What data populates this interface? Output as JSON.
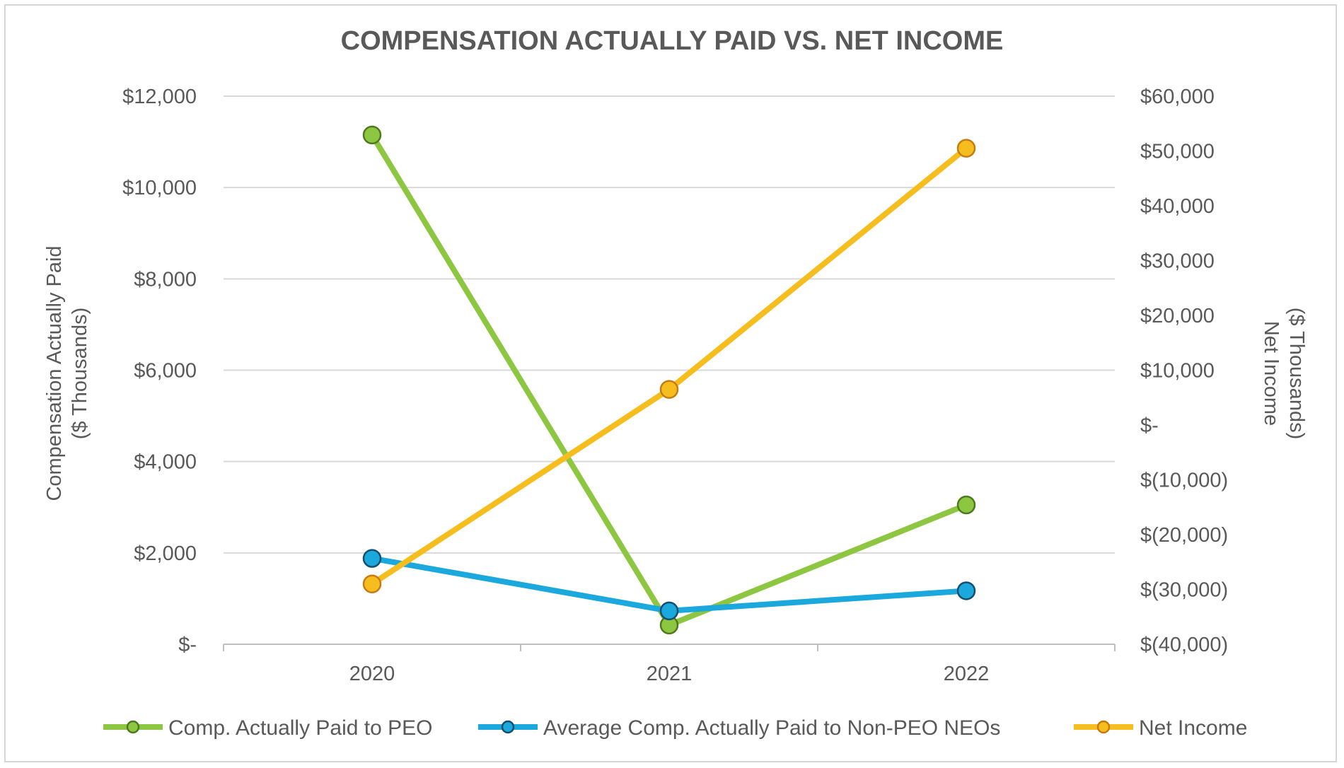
{
  "chart_data": {
    "type": "line",
    "title": "COMPENSATION ACTUALLY PAID VS. NET INCOME",
    "categories": [
      "2020",
      "2021",
      "2022"
    ],
    "y_left": {
      "label_line1": "Compensation Actually Paid",
      "label_line2": "($ Thousands)",
      "range": [
        0,
        12000
      ],
      "ticks": [
        0,
        2000,
        4000,
        6000,
        8000,
        10000,
        12000
      ],
      "tick_labels": [
        "$-",
        "$2,000",
        "$4,000",
        "$6,000",
        "$8,000",
        "$10,000",
        "$12,000"
      ]
    },
    "y_right": {
      "label_line1": "Net Income",
      "label_line2": "($ Thousands)",
      "range": [
        -40000,
        60000
      ],
      "ticks": [
        -40000,
        -30000,
        -20000,
        -10000,
        0,
        10000,
        20000,
        30000,
        40000,
        50000,
        60000
      ],
      "tick_labels": [
        "$(40,000)",
        "$(30,000)",
        "$(20,000)",
        "$(10,000)",
        "$-",
        "$10,000",
        "$20,000",
        "$30,000",
        "$40,000",
        "$50,000",
        "$60,000"
      ]
    },
    "series": [
      {
        "name": "Comp. Actually Paid to PEO",
        "axis": "left",
        "color": "#8dc641",
        "values": [
          11150,
          420,
          3050
        ]
      },
      {
        "name": "Average Comp. Actually Paid to Non-PEO NEOs",
        "axis": "left",
        "color": "#1ba8dd",
        "values": [
          1880,
          730,
          1170
        ]
      },
      {
        "name": "Net Income",
        "axis": "right",
        "color": "#f5be1e",
        "values": [
          -29000,
          6500,
          50500
        ]
      }
    ],
    "grid": true,
    "legend_position": "bottom"
  }
}
